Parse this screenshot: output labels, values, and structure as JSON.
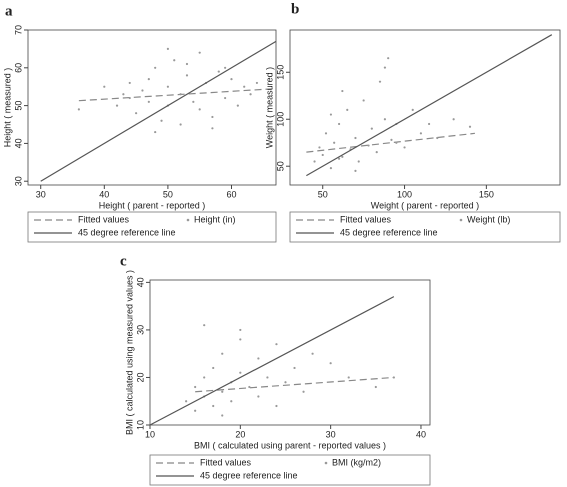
{
  "chart_data": [
    {
      "type": "scatter",
      "label": "a",
      "xlabel": "Height ( parent - reported )",
      "ylabel": "Height ( measured )",
      "xlim": [
        28,
        67
      ],
      "ylim": [
        29,
        70
      ],
      "xticks": [
        30,
        40,
        50,
        60
      ],
      "yticks": [
        30,
        40,
        50,
        60,
        70
      ],
      "series": [
        {
          "name": "Fitted values",
          "style": "dashed",
          "color": "#888888",
          "x": [
            36,
            67
          ],
          "y": [
            51.3,
            54.5
          ]
        },
        {
          "name": "Height (in)",
          "style": "marker",
          "color": "#999999",
          "x": [
            36,
            40,
            42,
            43,
            44,
            45,
            46,
            47,
            47,
            48,
            49,
            50,
            50,
            51,
            52,
            52,
            53,
            54,
            55,
            55,
            56,
            57,
            58,
            59,
            60,
            61,
            62,
            63,
            64,
            48,
            53,
            57,
            44,
            50,
            59
          ],
          "y": [
            49,
            55,
            50,
            53,
            56,
            48,
            54,
            57,
            51,
            60,
            46,
            55,
            50,
            62,
            45,
            53,
            58,
            51,
            64,
            49,
            56,
            44,
            59,
            52,
            57,
            50,
            55,
            53,
            56,
            43,
            61,
            47,
            52,
            65,
            60
          ]
        },
        {
          "name": "45 degree reference line",
          "style": "solid",
          "color": "#555555",
          "x": [
            30,
            67
          ],
          "y": [
            30,
            67
          ]
        }
      ]
    },
    {
      "type": "scatter",
      "label": "b",
      "xlabel": "Weight ( parent - reported )",
      "ylabel": "Weight ( measured )",
      "xlim": [
        30,
        195
      ],
      "ylim": [
        30,
        195
      ],
      "xticks": [
        50,
        100,
        150
      ],
      "yticks": [
        50,
        100,
        150
      ],
      "series": [
        {
          "name": "Fitted values",
          "style": "dashed",
          "color": "#888888",
          "x": [
            40,
            143
          ],
          "y": [
            65,
            85
          ]
        },
        {
          "name": "Weight (lb)",
          "style": "marker",
          "color": "#999999",
          "x": [
            45,
            48,
            50,
            52,
            55,
            57,
            60,
            62,
            65,
            67,
            70,
            72,
            75,
            78,
            80,
            83,
            85,
            88,
            90,
            92,
            95,
            100,
            105,
            110,
            115,
            120,
            130,
            140,
            55,
            62,
            70,
            88,
            95,
            60
          ],
          "y": [
            55,
            70,
            62,
            85,
            48,
            75,
            95,
            60,
            110,
            68,
            80,
            55,
            120,
            72,
            90,
            65,
            140,
            100,
            165,
            78,
            95,
            70,
            110,
            85,
            95,
            80,
            100,
            92,
            105,
            130,
            45,
            155,
            75,
            58
          ]
        },
        {
          "name": "45 degree reference line",
          "style": "solid",
          "color": "#555555",
          "x": [
            40,
            190
          ],
          "y": [
            40,
            190
          ]
        }
      ]
    },
    {
      "type": "scatter",
      "label": "c",
      "xlabel": "BMI ( calculated using parent - reported values )",
      "ylabel": "BMI ( calculated using measured values )",
      "xlim": [
        10,
        41
      ],
      "ylim": [
        10,
        40.5
      ],
      "xticks": [
        10,
        20,
        30,
        40
      ],
      "yticks": [
        10,
        20,
        30,
        40
      ],
      "series": [
        {
          "name": "Fitted values",
          "style": "dashed",
          "color": "#888888",
          "x": [
            15,
            37
          ],
          "y": [
            17,
            20
          ]
        },
        {
          "name": "BMI (kg/m2)",
          "style": "marker",
          "color": "#999999",
          "x": [
            14,
            15,
            15,
            16,
            16,
            17,
            17,
            18,
            18,
            19,
            19,
            20,
            20,
            21,
            22,
            22,
            23,
            24,
            25,
            26,
            27,
            28,
            30,
            32,
            35,
            37,
            16,
            18,
            20,
            24
          ],
          "y": [
            15,
            18,
            13,
            20,
            16,
            22,
            14,
            17,
            25,
            19,
            15,
            21,
            30,
            18,
            24,
            16,
            20,
            27,
            19,
            22,
            17,
            25,
            23,
            20,
            18,
            20,
            31,
            12,
            28,
            14
          ]
        },
        {
          "name": "45 degree reference line",
          "style": "solid",
          "color": "#555555",
          "x": [
            10,
            37
          ],
          "y": [
            10,
            37
          ]
        }
      ]
    }
  ]
}
